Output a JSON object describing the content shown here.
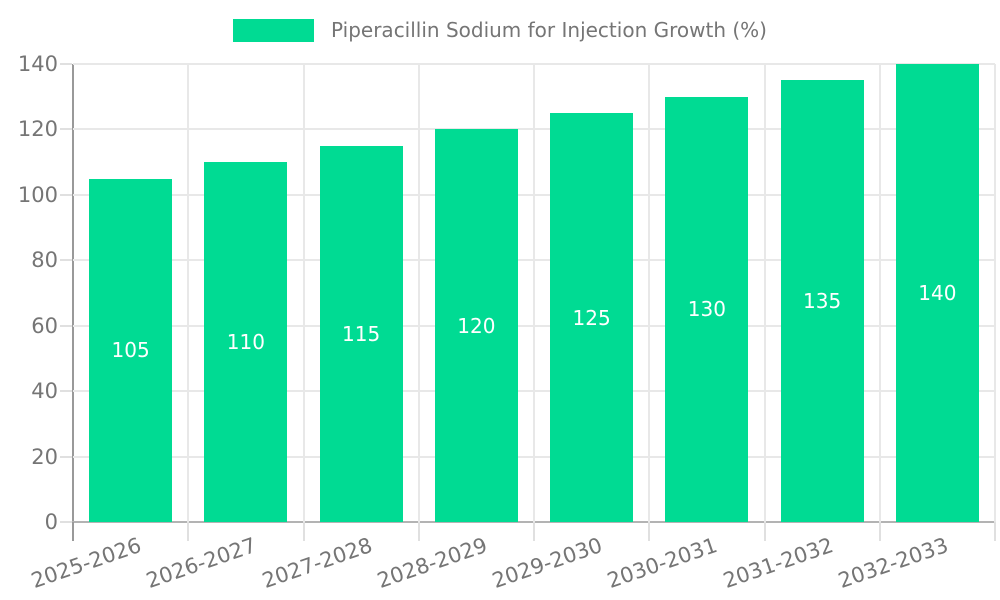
{
  "legend": {
    "label": "Piperacillin Sodium for Injection Growth (%)"
  },
  "chart_data": {
    "type": "bar",
    "title": "Piperacillin Sodium for Injection Growth (%)",
    "categories": [
      "2025-2026",
      "2026-2027",
      "2027-2028",
      "2028-2029",
      "2029-2030",
      "2030-2031",
      "2031-2032",
      "2032-2033"
    ],
    "values": [
      105,
      110,
      115,
      120,
      125,
      130,
      135,
      140
    ],
    "value_labels": [
      "105",
      "110",
      "115",
      "120",
      "125",
      "130",
      "135",
      "140"
    ],
    "xlabel": "",
    "ylabel": "",
    "ylim": [
      0,
      140
    ],
    "yticks": [
      0,
      20,
      40,
      60,
      80,
      100,
      120,
      140
    ],
    "grid": true,
    "legend_position": "top-center",
    "x_label_rotation_deg": -19,
    "colors": {
      "bar": "#00DB93",
      "value_label": "#FFFFFF",
      "grid_line": "#E8E8E8",
      "y_axis_line": "#999999",
      "x_axis_line": "#B3B3B3",
      "tick_mark": "#E0E0E0",
      "axis_text": "#757575",
      "background": "#FFFFFF"
    }
  }
}
